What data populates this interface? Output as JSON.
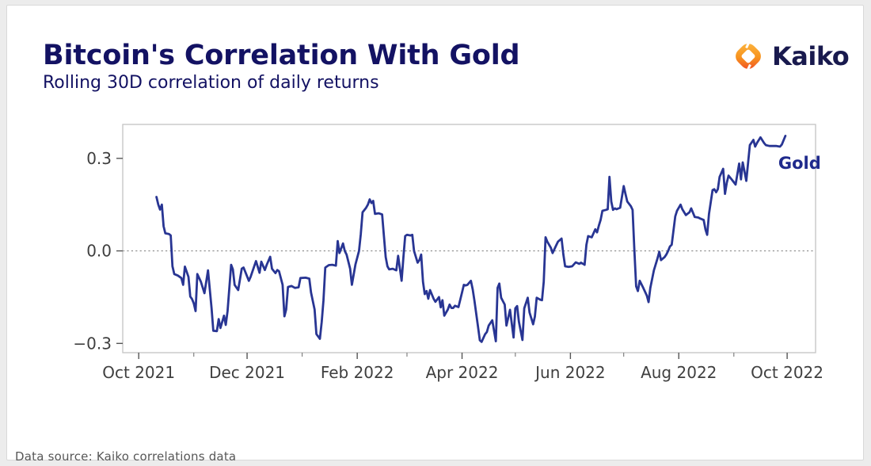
{
  "header": {
    "title": "Bitcoin's Correlation With Gold",
    "subtitle": "Rolling 30D correlation of daily returns",
    "brand": "Kaiko"
  },
  "footer": {
    "note": "Data source: Kaiko correlations data"
  },
  "colors": {
    "line": "#283593",
    "title_navy": "#131263",
    "brand_navy": "#191a4e",
    "series_label": "#1f2a8c",
    "axis_text": "#3f3f3f",
    "tick_mark": "#555555",
    "minor_tick_mark": "#777777",
    "plot_border": "#c4c4c4",
    "zero_line": "#8a8a8a",
    "logo_amber": "#FBB03B",
    "logo_orange": "#F15A24",
    "page_bg": "#ececec",
    "card_bg": "#ffffff"
  },
  "chart_data": {
    "type": "line",
    "title": "Bitcoin's Correlation With Gold",
    "subtitle": "Rolling 30D correlation of daily returns",
    "series_label": "Gold",
    "legend_position": "inline-right",
    "grid": false,
    "zero_line": 0.0,
    "x_unit": "days since 2021-10-01",
    "xlim_days": [
      -9,
      381
    ],
    "ylim": [
      -0.33,
      0.41
    ],
    "x_tick_days": [
      0,
      61,
      123,
      182,
      243,
      304,
      365
    ],
    "x_tick_labels": [
      "Oct 2021",
      "Dec 2021",
      "Feb 2022",
      "Apr 2022",
      "Jun 2022",
      "Aug 2022",
      "Oct 2022"
    ],
    "x_minor_tick_days": [
      31,
      92,
      151,
      212,
      273,
      335
    ],
    "y_ticks": [
      0.3,
      0.0,
      -0.3
    ],
    "y_tick_labels": [
      "0.3",
      "0.0",
      "−0.3"
    ],
    "annotation": {
      "label": "Gold",
      "x_day": 372,
      "y_val": 0.284
    },
    "points": [
      [
        10,
        0.175
      ],
      [
        11,
        0.15
      ],
      [
        12,
        0.134
      ],
      [
        13,
        0.15
      ],
      [
        14,
        0.08
      ],
      [
        15,
        0.057
      ],
      [
        17,
        0.055
      ],
      [
        18,
        0.05
      ],
      [
        19,
        -0.05
      ],
      [
        20,
        -0.075
      ],
      [
        22,
        -0.08
      ],
      [
        24,
        -0.088
      ],
      [
        25,
        -0.11
      ],
      [
        26,
        -0.051
      ],
      [
        28,
        -0.084
      ],
      [
        29,
        -0.148
      ],
      [
        30,
        -0.156
      ],
      [
        31,
        -0.17
      ],
      [
        32,
        -0.195
      ],
      [
        33,
        -0.075
      ],
      [
        35,
        -0.1
      ],
      [
        37,
        -0.137
      ],
      [
        39,
        -0.063
      ],
      [
        41,
        -0.186
      ],
      [
        42,
        -0.259
      ],
      [
        44,
        -0.26
      ],
      [
        45,
        -0.221
      ],
      [
        46,
        -0.25
      ],
      [
        48,
        -0.21
      ],
      [
        49,
        -0.24
      ],
      [
        50,
        -0.195
      ],
      [
        52,
        -0.045
      ],
      [
        53,
        -0.06
      ],
      [
        54,
        -0.11
      ],
      [
        56,
        -0.127
      ],
      [
        58,
        -0.058
      ],
      [
        59,
        -0.054
      ],
      [
        62,
        -0.097
      ],
      [
        63,
        -0.084
      ],
      [
        66,
        -0.033
      ],
      [
        68,
        -0.071
      ],
      [
        69,
        -0.035
      ],
      [
        71,
        -0.062
      ],
      [
        72,
        -0.046
      ],
      [
        74,
        -0.019
      ],
      [
        75,
        -0.058
      ],
      [
        77,
        -0.072
      ],
      [
        78,
        -0.062
      ],
      [
        79,
        -0.066
      ],
      [
        81,
        -0.11
      ],
      [
        82,
        -0.212
      ],
      [
        83,
        -0.19
      ],
      [
        84,
        -0.117
      ],
      [
        86,
        -0.114
      ],
      [
        88,
        -0.12
      ],
      [
        90,
        -0.118
      ],
      [
        91,
        -0.088
      ],
      [
        94,
        -0.087
      ],
      [
        96,
        -0.09
      ],
      [
        97,
        -0.135
      ],
      [
        99,
        -0.19
      ],
      [
        100,
        -0.27
      ],
      [
        102,
        -0.285
      ],
      [
        103,
        -0.23
      ],
      [
        104,
        -0.161
      ],
      [
        105,
        -0.054
      ],
      [
        107,
        -0.046
      ],
      [
        109,
        -0.045
      ],
      [
        111,
        -0.048
      ],
      [
        112,
        0.032
      ],
      [
        113,
        -0.007
      ],
      [
        115,
        0.024
      ],
      [
        116,
        0
      ],
      [
        117,
        -0.012
      ],
      [
        119,
        -0.058
      ],
      [
        120,
        -0.11
      ],
      [
        122,
        -0.044
      ],
      [
        124,
        0
      ],
      [
        125,
        0.053
      ],
      [
        126,
        0.125
      ],
      [
        128,
        0.14
      ],
      [
        129,
        0.15
      ],
      [
        130,
        0.167
      ],
      [
        131,
        0.155
      ],
      [
        132,
        0.162
      ],
      [
        133,
        0.12
      ],
      [
        135,
        0.122
      ],
      [
        137,
        0.118
      ],
      [
        138,
        0.05
      ],
      [
        139,
        -0.02
      ],
      [
        140,
        -0.05
      ],
      [
        141,
        -0.06
      ],
      [
        143,
        -0.058
      ],
      [
        145,
        -0.063
      ],
      [
        146,
        -0.016
      ],
      [
        148,
        -0.097
      ],
      [
        149,
        -0.02
      ],
      [
        150,
        0.048
      ],
      [
        151,
        0.052
      ],
      [
        153,
        0.05
      ],
      [
        154,
        0.052
      ],
      [
        155,
        0
      ],
      [
        157,
        -0.038
      ],
      [
        158,
        -0.03
      ],
      [
        159,
        -0.012
      ],
      [
        160,
        -0.1
      ],
      [
        161,
        -0.14
      ],
      [
        162,
        -0.13
      ],
      [
        163,
        -0.155
      ],
      [
        164,
        -0.127
      ],
      [
        166,
        -0.155
      ],
      [
        167,
        -0.165
      ],
      [
        169,
        -0.15
      ],
      [
        170,
        -0.183
      ],
      [
        171,
        -0.16
      ],
      [
        172,
        -0.21
      ],
      [
        174,
        -0.19
      ],
      [
        175,
        -0.174
      ],
      [
        176,
        -0.185
      ],
      [
        177,
        -0.185
      ],
      [
        178,
        -0.178
      ],
      [
        180,
        -0.182
      ],
      [
        182,
        -0.135
      ],
      [
        183,
        -0.11
      ],
      [
        184,
        -0.112
      ],
      [
        185,
        -0.11
      ],
      [
        187,
        -0.097
      ],
      [
        188,
        -0.125
      ],
      [
        189,
        -0.162
      ],
      [
        191,
        -0.246
      ],
      [
        192,
        -0.29
      ],
      [
        193,
        -0.295
      ],
      [
        195,
        -0.27
      ],
      [
        196,
        -0.263
      ],
      [
        197,
        -0.242
      ],
      [
        199,
        -0.225
      ],
      [
        201,
        -0.293
      ],
      [
        202,
        -0.12
      ],
      [
        203,
        -0.106
      ],
      [
        204,
        -0.152
      ],
      [
        206,
        -0.174
      ],
      [
        207,
        -0.242
      ],
      [
        209,
        -0.191
      ],
      [
        211,
        -0.281
      ],
      [
        212,
        -0.186
      ],
      [
        213,
        -0.179
      ],
      [
        214,
        -0.229
      ],
      [
        216,
        -0.289
      ],
      [
        217,
        -0.186
      ],
      [
        219,
        -0.152
      ],
      [
        220,
        -0.2
      ],
      [
        222,
        -0.238
      ],
      [
        223,
        -0.213
      ],
      [
        224,
        -0.152
      ],
      [
        226,
        -0.158
      ],
      [
        227,
        -0.16
      ],
      [
        228,
        -0.1
      ],
      [
        229,
        0.044
      ],
      [
        230,
        0.03
      ],
      [
        232,
        0.01
      ],
      [
        233,
        -0.007
      ],
      [
        235,
        0.018
      ],
      [
        236,
        0.03
      ],
      [
        238,
        0.04
      ],
      [
        239,
        -0.01
      ],
      [
        240,
        -0.05
      ],
      [
        242,
        -0.052
      ],
      [
        244,
        -0.05
      ],
      [
        246,
        -0.037
      ],
      [
        248,
        -0.042
      ],
      [
        249,
        -0.038
      ],
      [
        251,
        -0.045
      ],
      [
        252,
        0.02
      ],
      [
        253,
        0.048
      ],
      [
        255,
        0.044
      ],
      [
        257,
        0.07
      ],
      [
        258,
        0.06
      ],
      [
        259,
        0.082
      ],
      [
        260,
        0.1
      ],
      [
        261,
        0.13
      ],
      [
        263,
        0.133
      ],
      [
        264,
        0.135
      ],
      [
        265,
        0.24
      ],
      [
        266,
        0.16
      ],
      [
        267,
        0.133
      ],
      [
        268,
        0.138
      ],
      [
        269,
        0.135
      ],
      [
        271,
        0.14
      ],
      [
        273,
        0.21
      ],
      [
        274,
        0.185
      ],
      [
        275,
        0.16
      ],
      [
        277,
        0.145
      ],
      [
        278,
        0.133
      ],
      [
        279,
        0
      ],
      [
        280,
        -0.115
      ],
      [
        281,
        -0.13
      ],
      [
        282,
        -0.097
      ],
      [
        284,
        -0.12
      ],
      [
        286,
        -0.145
      ],
      [
        287,
        -0.166
      ],
      [
        288,
        -0.12
      ],
      [
        290,
        -0.063
      ],
      [
        292,
        -0.025
      ],
      [
        293,
        -0.003
      ],
      [
        294,
        -0.03
      ],
      [
        296,
        -0.02
      ],
      [
        297,
        -0.012
      ],
      [
        298,
        0
      ],
      [
        299,
        0.014
      ],
      [
        300,
        0.02
      ],
      [
        302,
        0.112
      ],
      [
        303,
        0.13
      ],
      [
        305,
        0.15
      ],
      [
        306,
        0.135
      ],
      [
        308,
        0.116
      ],
      [
        310,
        0.125
      ],
      [
        311,
        0.138
      ],
      [
        313,
        0.11
      ],
      [
        315,
        0.108
      ],
      [
        316,
        0.105
      ],
      [
        318,
        0.1
      ],
      [
        319,
        0.07
      ],
      [
        320,
        0.052
      ],
      [
        321,
        0.12
      ],
      [
        323,
        0.197
      ],
      [
        324,
        0.2
      ],
      [
        325,
        0.19
      ],
      [
        326,
        0.2
      ],
      [
        327,
        0.24
      ],
      [
        329,
        0.266
      ],
      [
        330,
        0.185
      ],
      [
        331,
        0.22
      ],
      [
        332,
        0.244
      ],
      [
        334,
        0.23
      ],
      [
        336,
        0.215
      ],
      [
        337,
        0.25
      ],
      [
        338,
        0.283
      ],
      [
        339,
        0.232
      ],
      [
        340,
        0.287
      ],
      [
        342,
        0.227
      ],
      [
        344,
        0.343
      ],
      [
        346,
        0.36
      ],
      [
        347,
        0.338
      ],
      [
        348,
        0.35
      ],
      [
        350,
        0.368
      ],
      [
        352,
        0.35
      ],
      [
        353,
        0.343
      ],
      [
        355,
        0.34
      ],
      [
        357,
        0.34
      ],
      [
        359,
        0.34
      ],
      [
        361,
        0.338
      ],
      [
        362,
        0.345
      ],
      [
        364,
        0.373
      ]
    ]
  }
}
